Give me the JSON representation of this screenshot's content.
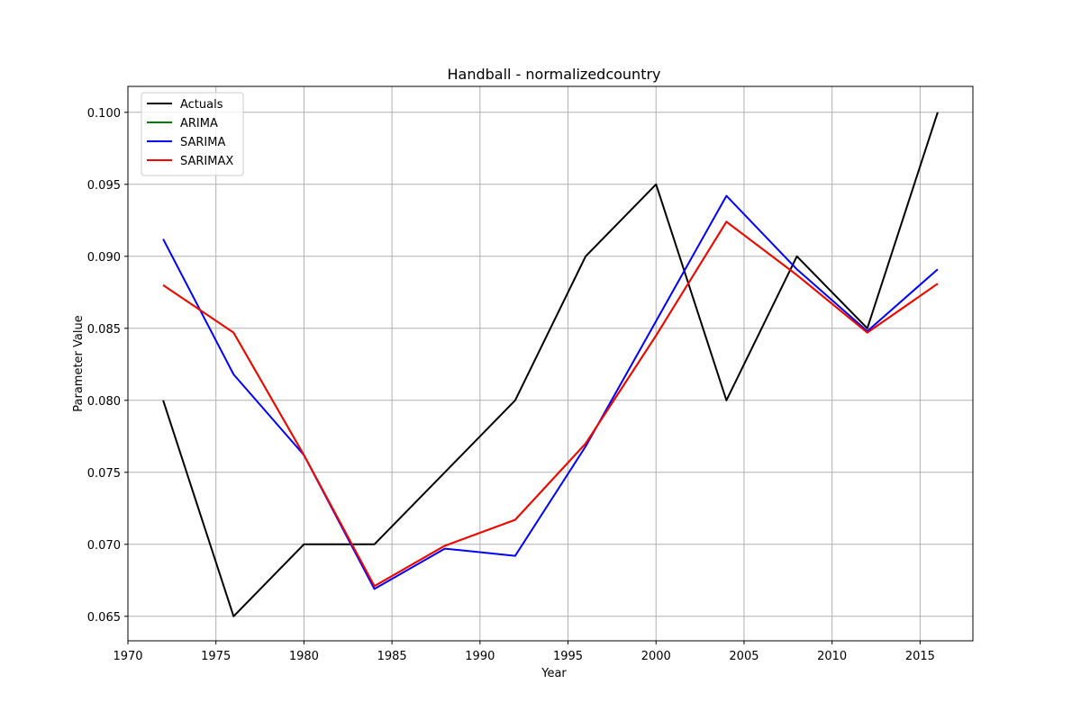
{
  "chart_data": {
    "type": "line",
    "title": "Handball - normalizedcountry",
    "xlabel": "Year",
    "ylabel": "Parameter Value",
    "xlim": [
      1970,
      2018
    ],
    "ylim": [
      0.0633,
      0.1018
    ],
    "xticks": [
      1970,
      1975,
      1980,
      1985,
      1990,
      1995,
      2000,
      2005,
      2010,
      2015
    ],
    "yticks": [
      0.065,
      0.07,
      0.075,
      0.08,
      0.085,
      0.09,
      0.095,
      0.1
    ],
    "ytick_labels": [
      "0.065",
      "0.070",
      "0.075",
      "0.080",
      "0.085",
      "0.090",
      "0.095",
      "0.100"
    ],
    "grid": true,
    "legend_position": "top-left",
    "x": [
      1972,
      1976,
      1980,
      1984,
      1988,
      1992,
      1996,
      2000,
      2004,
      2008,
      2012,
      2016
    ],
    "series": [
      {
        "name": "Actuals",
        "color": "#000000",
        "values": [
          0.08,
          0.065,
          0.07,
          0.07,
          0.075,
          0.08,
          0.09,
          0.095,
          0.08,
          0.09,
          0.085,
          0.1
        ]
      },
      {
        "name": "ARIMA",
        "color": "#008000",
        "values": [
          0.088,
          0.0847,
          0.0762,
          0.0671,
          0.0699,
          0.0717,
          0.077,
          0.0845,
          0.0924,
          0.0887,
          0.0847,
          0.0881
        ]
      },
      {
        "name": "SARIMA",
        "color": "#0000ff",
        "values": [
          0.0912,
          0.0818,
          0.0762,
          0.0669,
          0.0697,
          0.0692,
          0.0768,
          0.0855,
          0.0942,
          0.0891,
          0.0848,
          0.0891
        ]
      },
      {
        "name": "SARIMAX",
        "color": "#ff0000",
        "values": [
          0.088,
          0.0847,
          0.0762,
          0.0671,
          0.0699,
          0.0717,
          0.077,
          0.0845,
          0.0924,
          0.0887,
          0.0847,
          0.0881
        ]
      }
    ]
  }
}
